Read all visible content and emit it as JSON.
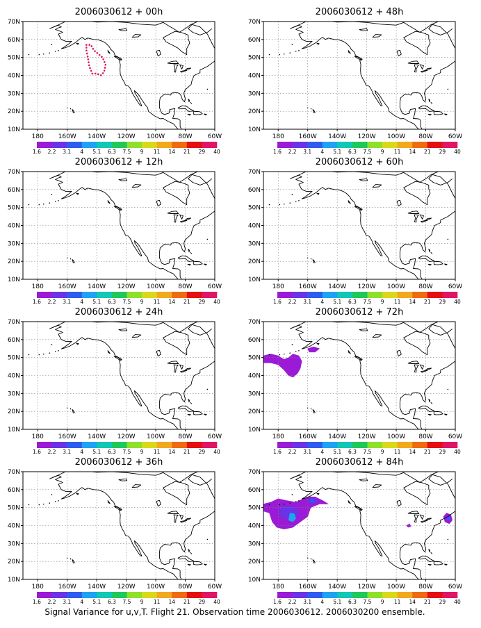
{
  "caption": "Signal Variance for u,v,T. Flight 21. Observation time 2006030612. 2006030200 ensemble.",
  "palette": [
    "#9a1ad6",
    "#6a33e6",
    "#2f5cf0",
    "#1ea3f2",
    "#10c8b4",
    "#1fc85a",
    "#8ee02a",
    "#d9d91a",
    "#f2a91d",
    "#ef6a10",
    "#e60f0f",
    "#e01565"
  ],
  "colorbar_labels": [
    "1.6",
    "2.2",
    "3.1",
    "4",
    "5.1",
    "6.3",
    "7.5",
    "9",
    "11",
    "14",
    "21",
    "29",
    "40"
  ],
  "x_ticks": [
    "180",
    "160W",
    "140W",
    "120W",
    "100W",
    "80W",
    "60W"
  ],
  "y_ticks": [
    "10N",
    "20N",
    "30N",
    "40N",
    "50N",
    "60N",
    "70N"
  ],
  "chart_data": [
    {
      "type": "heatmap",
      "title": "2006030612 + 00h",
      "xlim": [
        -190,
        -60
      ],
      "ylim": [
        10,
        70
      ],
      "grid": true,
      "features": [
        {
          "kind": "flight-track",
          "color": "#e01565",
          "points": [
            [
              -147,
              57
            ],
            [
              -144,
              57
            ],
            [
              -142,
              54
            ],
            [
              -139,
              52
            ],
            [
              -136,
              50
            ],
            [
              -134,
              46
            ],
            [
              -135,
              42
            ],
            [
              -137,
              40
            ],
            [
              -140,
              41
            ],
            [
              -143,
              41
            ],
            [
              -145,
              45
            ],
            [
              -146,
              50
            ],
            [
              -147,
              54
            ]
          ]
        }
      ]
    },
    {
      "type": "heatmap",
      "title": "2006030612 + 12h",
      "xlim": [
        -190,
        -60
      ],
      "ylim": [
        10,
        70
      ],
      "grid": true,
      "features": []
    },
    {
      "type": "heatmap",
      "title": "2006030612 + 24h",
      "xlim": [
        -190,
        -60
      ],
      "ylim": [
        10,
        70
      ],
      "grid": true,
      "features": []
    },
    {
      "type": "heatmap",
      "title": "2006030612 + 36h",
      "xlim": [
        -190,
        -60
      ],
      "ylim": [
        10,
        70
      ],
      "grid": true,
      "features": []
    },
    {
      "type": "heatmap",
      "title": "2006030612 + 48h",
      "xlim": [
        -190,
        -60
      ],
      "ylim": [
        10,
        70
      ],
      "grid": true,
      "features": []
    },
    {
      "type": "heatmap",
      "title": "2006030612 + 60h",
      "xlim": [
        -190,
        -60
      ],
      "ylim": [
        10,
        70
      ],
      "grid": true,
      "features": []
    },
    {
      "type": "heatmap",
      "title": "2006030612 + 72h",
      "xlim": [
        -190,
        -60
      ],
      "ylim": [
        10,
        70
      ],
      "grid": true,
      "features": [
        {
          "kind": "variance-region",
          "level": 0,
          "points": [
            [
              -190,
              51
            ],
            [
              -185,
              52
            ],
            [
              -180,
              51
            ],
            [
              -176,
              49
            ],
            [
              -173,
              50
            ],
            [
              -170,
              52
            ],
            [
              -166,
              51
            ],
            [
              -164,
              48
            ],
            [
              -165,
              44
            ],
            [
              -167,
              41
            ],
            [
              -170,
              39
            ],
            [
              -173,
              40
            ],
            [
              -176,
              43
            ],
            [
              -180,
              46
            ],
            [
              -185,
              47
            ],
            [
              -190,
              47
            ]
          ]
        },
        {
          "kind": "variance-region",
          "level": 0,
          "points": [
            [
              -160,
              55
            ],
            [
              -156,
              56
            ],
            [
              -152,
              55
            ],
            [
              -155,
              53
            ],
            [
              -159,
              53
            ]
          ]
        }
      ]
    },
    {
      "type": "heatmap",
      "title": "2006030612 + 84h",
      "xlim": [
        -190,
        -60
      ],
      "ylim": [
        10,
        70
      ],
      "grid": true,
      "features": [
        {
          "kind": "variance-region",
          "level": 0,
          "points": [
            [
              -190,
              52
            ],
            [
              -185,
              53
            ],
            [
              -180,
              55
            ],
            [
              -175,
              54
            ],
            [
              -168,
              53
            ],
            [
              -160,
              56
            ],
            [
              -155,
              56
            ],
            [
              -150,
              54
            ],
            [
              -146,
              52
            ],
            [
              -152,
              52
            ],
            [
              -158,
              50
            ],
            [
              -160,
              45
            ],
            [
              -165,
              42
            ],
            [
              -170,
              39
            ],
            [
              -176,
              38
            ],
            [
              -181,
              39
            ],
            [
              -184,
              42
            ],
            [
              -186,
              47
            ],
            [
              -190,
              48
            ]
          ]
        },
        {
          "kind": "variance-region",
          "level": 0,
          "points": [
            [
              -66,
              47
            ],
            [
              -63,
              46
            ],
            [
              -62,
              43
            ],
            [
              -64,
              41
            ],
            [
              -67,
              42
            ],
            [
              -68,
              45
            ]
          ]
        },
        {
          "kind": "variance-region",
          "level": 0,
          "points": [
            [
              -93,
              40
            ],
            [
              -91,
              41
            ],
            [
              -90,
              39.5
            ],
            [
              -92,
              39
            ]
          ]
        },
        {
          "kind": "variance-region",
          "level": 1,
          "points": [
            [
              -179,
              50
            ],
            [
              -174,
              51
            ],
            [
              -168,
              50
            ],
            [
              -166,
              47
            ],
            [
              -170,
              44
            ],
            [
              -176,
              44
            ],
            [
              -179,
              46
            ]
          ]
        },
        {
          "kind": "variance-region",
          "level": 1,
          "points": [
            [
              -160,
              55
            ],
            [
              -155,
              55.5
            ],
            [
              -153,
              53
            ],
            [
              -157,
              52
            ],
            [
              -160,
              53
            ]
          ]
        },
        {
          "kind": "variance-region",
          "level": 3,
          "points": [
            [
              -172,
              47
            ],
            [
              -169,
              46.5
            ],
            [
              -168,
              44
            ],
            [
              -170,
              42
            ],
            [
              -173,
              43
            ]
          ]
        },
        {
          "kind": "variance-region",
          "level": 2,
          "points": [
            [
              -158,
              54.5
            ],
            [
              -156,
              54.5
            ],
            [
              -155.5,
              53
            ],
            [
              -158,
              53
            ]
          ]
        },
        {
          "kind": "variance-region",
          "level": 2,
          "points": [
            [
              -65,
              45.5
            ],
            [
              -63.5,
              44.5
            ],
            [
              -64,
              43
            ],
            [
              -66,
              43.5
            ]
          ]
        }
      ]
    }
  ]
}
